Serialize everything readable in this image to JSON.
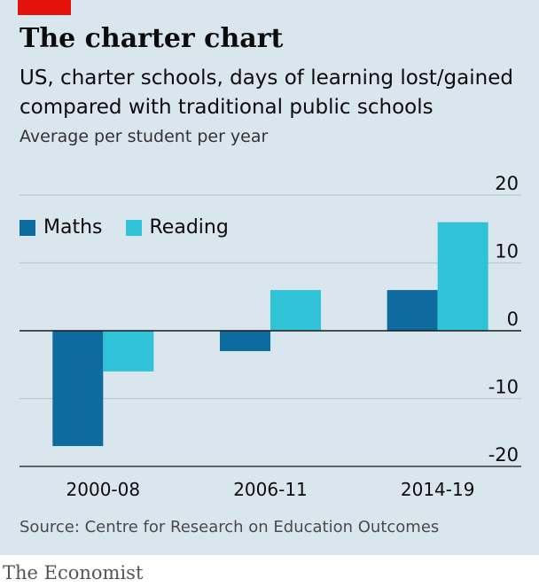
{
  "header": {
    "title": "The charter chart",
    "subtitle": "US, charter schools, days of learning lost/gained compared with traditional public schools",
    "unit": "Average per student per year"
  },
  "source": "Source: Centre for Research on Education Outcomes",
  "brand": "The Economist",
  "colors": {
    "background": "#d9e6ee",
    "accent": "#e3120b",
    "maths": "#0e6b9f",
    "reading": "#30c2d6",
    "grid": "#b7c6d0",
    "zero_line": "#1a1a1a"
  },
  "chart_data": {
    "type": "bar",
    "categories": [
      "2000-08",
      "2006-11",
      "2014-19"
    ],
    "series": [
      {
        "name": "Maths",
        "values": [
          -17,
          -3,
          6
        ]
      },
      {
        "name": "Reading",
        "values": [
          -6,
          6,
          16
        ]
      }
    ],
    "ylim": [
      -20,
      20
    ],
    "yticks": [
      20,
      10,
      0,
      -10,
      -20
    ],
    "ytick_labels": [
      "20",
      "10",
      "0",
      "-10",
      "-20"
    ],
    "grid": true,
    "legend": "top-left",
    "axis_position": "right"
  }
}
